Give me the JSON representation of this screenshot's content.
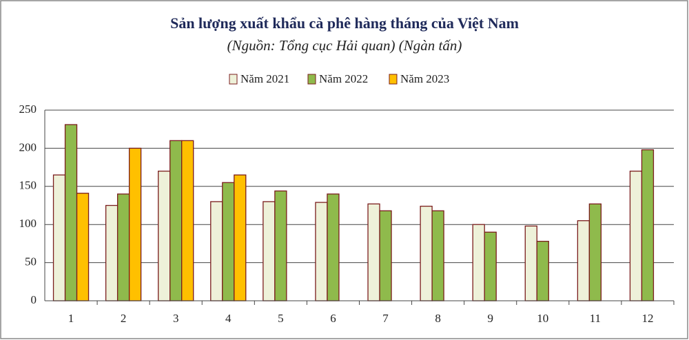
{
  "chart_data": {
    "type": "bar",
    "title": "Sản lượng xuất khẩu cà phê hàng tháng của Việt Nam",
    "subtitle": "(Nguồn: Tổng cục Hải quan) (Ngàn tấn)",
    "categories": [
      "1",
      "2",
      "3",
      "4",
      "5",
      "6",
      "7",
      "8",
      "9",
      "10",
      "11",
      "12"
    ],
    "series": [
      {
        "name": "Năm 2021",
        "color": "#eef1d9",
        "values": [
          165,
          125,
          170,
          130,
          130,
          129,
          127,
          124,
          100,
          98,
          105,
          170
        ]
      },
      {
        "name": "Năm 2022",
        "color": "#8fba4c",
        "values": [
          231,
          140,
          210,
          155,
          144,
          140,
          118,
          118,
          90,
          78,
          127,
          198
        ]
      },
      {
        "name": "Năm 2023",
        "color": "#ffc000",
        "values": [
          141,
          200,
          210,
          165,
          null,
          null,
          null,
          null,
          null,
          null,
          null,
          null
        ]
      }
    ],
    "ylim": [
      0,
      250
    ],
    "yticks": [
      0,
      50,
      100,
      150,
      200,
      250
    ],
    "grid": true,
    "legend": "top"
  }
}
